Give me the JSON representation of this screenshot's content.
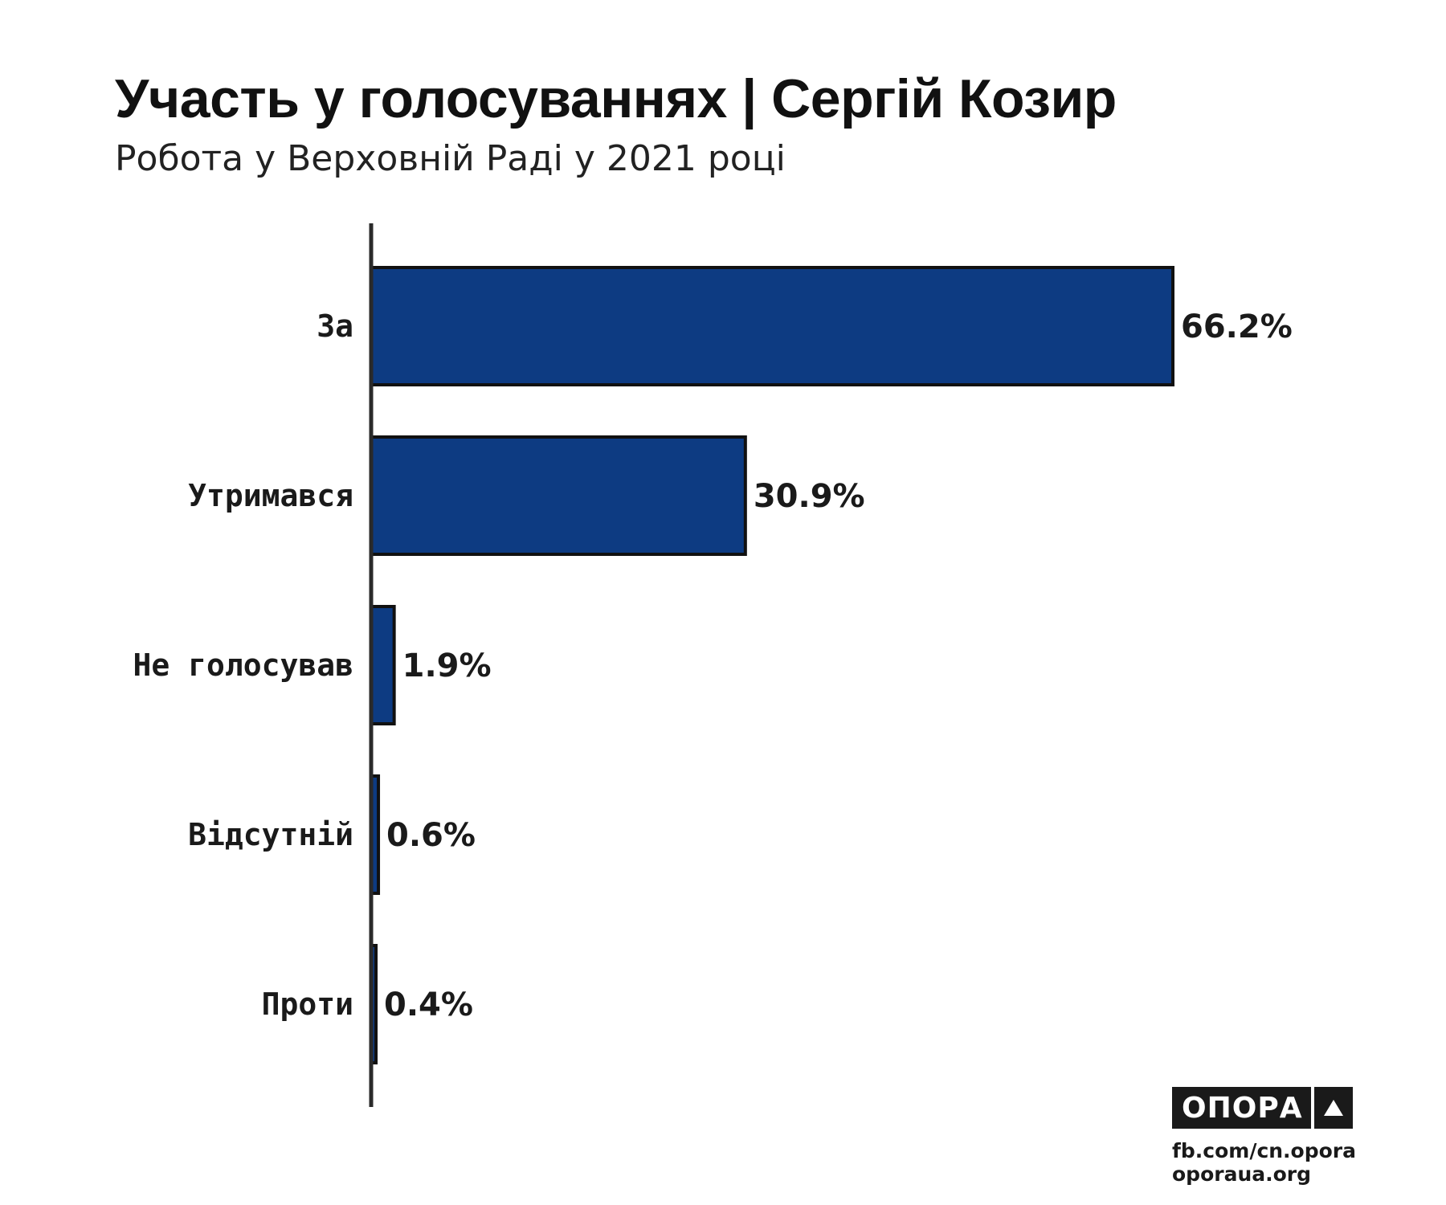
{
  "header": {
    "title": "Участь у голосуваннях | Сергій Козир",
    "subtitle": "Робота у Верховній Раді у 2021 році"
  },
  "chart_data": {
    "type": "bar",
    "orientation": "horizontal",
    "title": "Участь у голосуваннях | Сергій Козир",
    "subtitle": "Робота у Верховній Раді у 2021 році",
    "categories": [
      "За",
      "Утримався",
      "Не голосував",
      "Відсутній",
      "Проти"
    ],
    "values": [
      66.2,
      30.9,
      1.9,
      0.6,
      0.4
    ],
    "value_labels": [
      "66.2%",
      "30.9%",
      "1.9%",
      "0.6%",
      "0.4%"
    ],
    "unit": "%",
    "xlim": [
      0,
      66.2
    ],
    "grid": false,
    "legend": "none",
    "bar_color": "#0d3b82"
  },
  "footer": {
    "logo_text": "ОПОРА",
    "logo_icon": "triangle-icon",
    "link_facebook": "fb.com/cn.opora",
    "link_site": "oporaua.org"
  }
}
